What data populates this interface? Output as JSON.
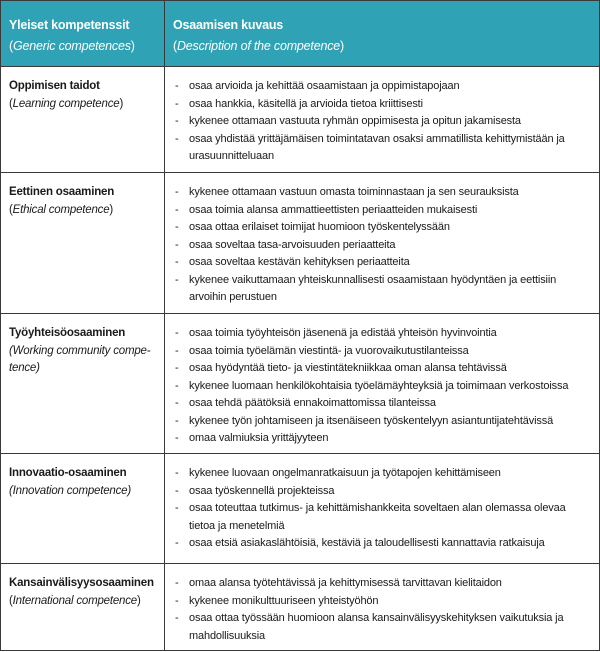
{
  "header": {
    "col1_title": "Yleiset kompetenssit",
    "col1_subtitle": "Generic competences",
    "col2_title": "Osaamisen kuvaus",
    "col2_subtitle": "Description of the competence",
    "color": "#2fa3b5"
  },
  "rows": [
    {
      "title": "Oppimisen taidot",
      "subtitle": "Learning competence",
      "items": [
        "osaa arvioida ja kehittää osaamistaan ja oppimistapojaan",
        "osaa hankkia, käsitellä ja arvioida tietoa kriittisesti",
        "kykenee ottamaan vastuuta ryhmän oppimisesta ja opitun jakamisesta",
        "osaa yhdistää yrittäjämäisen toimintatavan osaksi ammatillista kehittymistään ja urasuunnitteluaan"
      ]
    },
    {
      "title": "Eettinen osaaminen",
      "subtitle": "Ethical competence",
      "items": [
        "kykenee ottamaan vastuun omasta toiminnastaan ja sen seurauksista",
        "osaa toimia alansa ammattieettisten periaatteiden mukaisesti",
        "osaa ottaa erilaiset toimijat huomioon työskentelyssään",
        "osaa soveltaa tasa-arvoisuuden periaatteita",
        "osaa soveltaa kestävän kehityksen periaatteita",
        "kykenee vaikuttamaan yhteiskunnallisesti osaamistaan hyödyntäen ja eettisiin arvoihin perustuen"
      ]
    },
    {
      "title": "Työyhteisöosaaminen",
      "subtitle": "Working community compe-tence",
      "items": [
        "osaa toimia työyhteisön jäsenenä ja edistää yhteisön hyvinvointia",
        "osaa toimia työelämän viestintä- ja vuorovaikutustilanteissa",
        "osaa hyödyntää tieto- ja viestintätekniikkaa oman alansa tehtävissä",
        "kykenee luomaan henkilökohtaisia työelämäyhteyksiä ja toimimaan verkostoissa",
        "osaa tehdä päätöksiä ennakoimattomissa tilanteissa",
        "kykenee työn johtamiseen ja itsenäiseen työskentelyyn asiantuntijatehtävissä",
        "omaa valmiuksia yrittäjyyteen"
      ]
    },
    {
      "title": "Innovaatio-osaaminen",
      "subtitle": "Innovation competence",
      "items": [
        "kykenee luovaan ongelmanratkaisuun ja työtapojen kehittämiseen",
        "osaa työskennellä projekteissa",
        "osaa toteuttaa tutkimus- ja kehittämishankkeita soveltaen alan olemassa olevaa tietoa ja menetelmiä",
        "osaa etsiä asiakaslähtöisiä, kestäviä ja taloudellisesti kannattavia ratkaisuja"
      ]
    },
    {
      "title": "Kansainvälisyysosaaminen",
      "subtitle": "International competence",
      "items": [
        "omaa alansa työtehtävissä ja kehittymisessä tarvittavan kielitaidon",
        "kykenee monikulttuuriseen yhteistyöhön",
        "osaa ottaa työssään huomioon alansa kansainvälisyyskehityksen vaikutuksia ja mahdollisuuksia"
      ]
    }
  ]
}
